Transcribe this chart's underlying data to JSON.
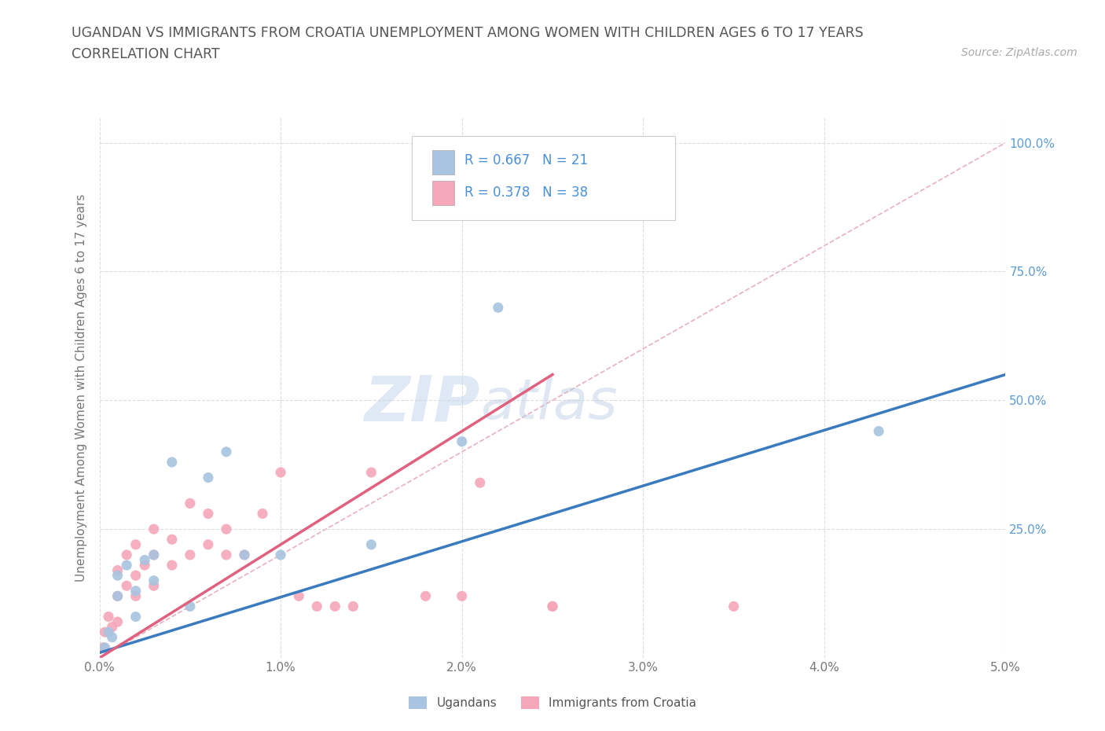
{
  "title_line1": "UGANDAN VS IMMIGRANTS FROM CROATIA UNEMPLOYMENT AMONG WOMEN WITH CHILDREN AGES 6 TO 17 YEARS",
  "title_line2": "CORRELATION CHART",
  "source_text": "Source: ZipAtlas.com",
  "ylabel": "Unemployment Among Women with Children Ages 6 to 17 years",
  "xlim": [
    0.0,
    0.05
  ],
  "ylim": [
    0.0,
    1.05
  ],
  "xtick_labels": [
    "0.0%",
    "1.0%",
    "2.0%",
    "3.0%",
    "4.0%",
    "5.0%"
  ],
  "xtick_values": [
    0.0,
    0.01,
    0.02,
    0.03,
    0.04,
    0.05
  ],
  "ytick_labels": [
    "25.0%",
    "50.0%",
    "75.0%",
    "100.0%"
  ],
  "ytick_values": [
    0.25,
    0.5,
    0.75,
    1.0
  ],
  "ugandan_color": "#a8c4e0",
  "croatia_color": "#f4a7b9",
  "ugandan_R": 0.667,
  "ugandan_N": 21,
  "croatia_R": 0.378,
  "croatia_N": 38,
  "ugandan_line_color": "#3a7bbf",
  "croatia_line_color": "#e06080",
  "diagonal_color": "#e8b0c0",
  "diagonal_style": "--",
  "watermark_zip": "ZIP",
  "watermark_atlas": "atlas",
  "legend_label_ugandan": "Ugandans",
  "legend_label_croatia": "Immigrants from Croatia",
  "ugandan_scatter_x": [
    0.0003,
    0.0005,
    0.0007,
    0.001,
    0.001,
    0.0015,
    0.002,
    0.002,
    0.0025,
    0.003,
    0.003,
    0.004,
    0.005,
    0.006,
    0.007,
    0.008,
    0.01,
    0.015,
    0.02,
    0.022,
    0.043
  ],
  "ugandan_scatter_y": [
    0.02,
    0.05,
    0.04,
    0.12,
    0.16,
    0.18,
    0.08,
    0.13,
    0.19,
    0.15,
    0.2,
    0.38,
    0.1,
    0.35,
    0.4,
    0.2,
    0.2,
    0.22,
    0.42,
    0.68,
    0.44
  ],
  "croatia_scatter_x": [
    0.0002,
    0.0003,
    0.0005,
    0.0007,
    0.001,
    0.001,
    0.001,
    0.0015,
    0.0015,
    0.002,
    0.002,
    0.002,
    0.0025,
    0.003,
    0.003,
    0.003,
    0.004,
    0.004,
    0.005,
    0.005,
    0.006,
    0.006,
    0.007,
    0.007,
    0.008,
    0.009,
    0.01,
    0.011,
    0.012,
    0.013,
    0.014,
    0.015,
    0.018,
    0.02,
    0.021,
    0.025,
    0.025,
    0.035
  ],
  "croatia_scatter_y": [
    0.02,
    0.05,
    0.08,
    0.06,
    0.07,
    0.12,
    0.17,
    0.14,
    0.2,
    0.12,
    0.16,
    0.22,
    0.18,
    0.14,
    0.2,
    0.25,
    0.18,
    0.23,
    0.2,
    0.3,
    0.22,
    0.28,
    0.2,
    0.25,
    0.2,
    0.28,
    0.36,
    0.12,
    0.1,
    0.1,
    0.1,
    0.36,
    0.12,
    0.12,
    0.34,
    0.1,
    0.1,
    0.1
  ],
  "ugandan_line_x0": 0.0,
  "ugandan_line_y0": 0.01,
  "ugandan_line_x1": 0.05,
  "ugandan_line_y1": 0.55,
  "croatia_line_x0": 0.0,
  "croatia_line_y0": 0.0,
  "croatia_line_x1": 0.025,
  "croatia_line_y1": 0.55,
  "background_color": "#ffffff",
  "plot_bg_color": "#ffffff",
  "grid_color": "#dddddd"
}
